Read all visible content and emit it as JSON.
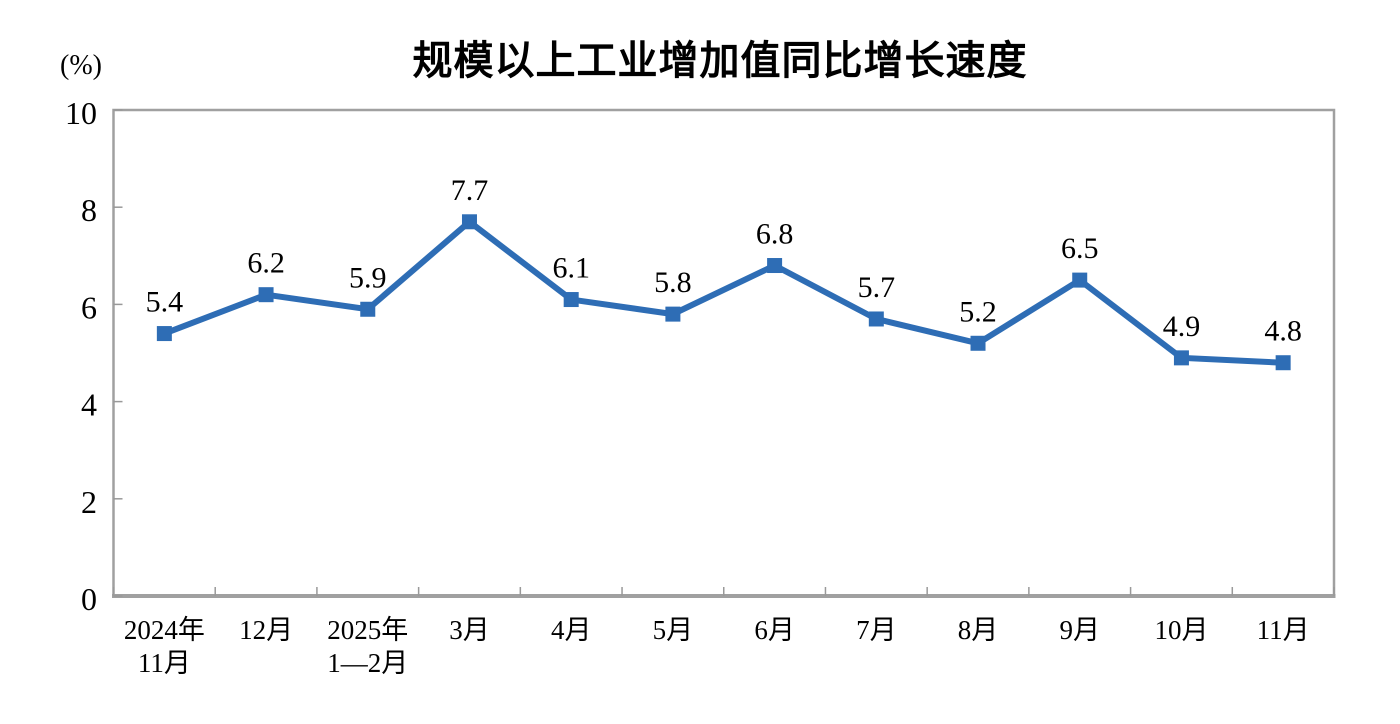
{
  "chart_data": {
    "type": "line",
    "title": "规模以上工业增加值同比增长速度",
    "unit_label": "(%)",
    "categories": [
      "2024年\n11月",
      "12月",
      "2025年\n1—2月",
      "3月",
      "4月",
      "5月",
      "6月",
      "7月",
      "8月",
      "9月",
      "10月",
      "11月"
    ],
    "values": [
      5.4,
      6.2,
      5.9,
      7.7,
      6.1,
      5.8,
      6.8,
      5.7,
      5.2,
      6.5,
      4.9,
      4.8
    ],
    "data_labels": [
      "5.4",
      "6.2",
      "5.9",
      "7.7",
      "6.1",
      "5.8",
      "6.8",
      "5.7",
      "5.2",
      "6.5",
      "4.9",
      "4.8"
    ],
    "ylim": [
      0,
      10
    ],
    "yticks": [
      0,
      2,
      4,
      6,
      8,
      10
    ],
    "grid": false,
    "legend_position": "none",
    "marker_shape": "square",
    "line_color": "#2E6DB5",
    "axis_color": "#A0A0A0",
    "tick_color": "#999999",
    "text_color": "#000000",
    "background_color": "#FFFFFF"
  }
}
